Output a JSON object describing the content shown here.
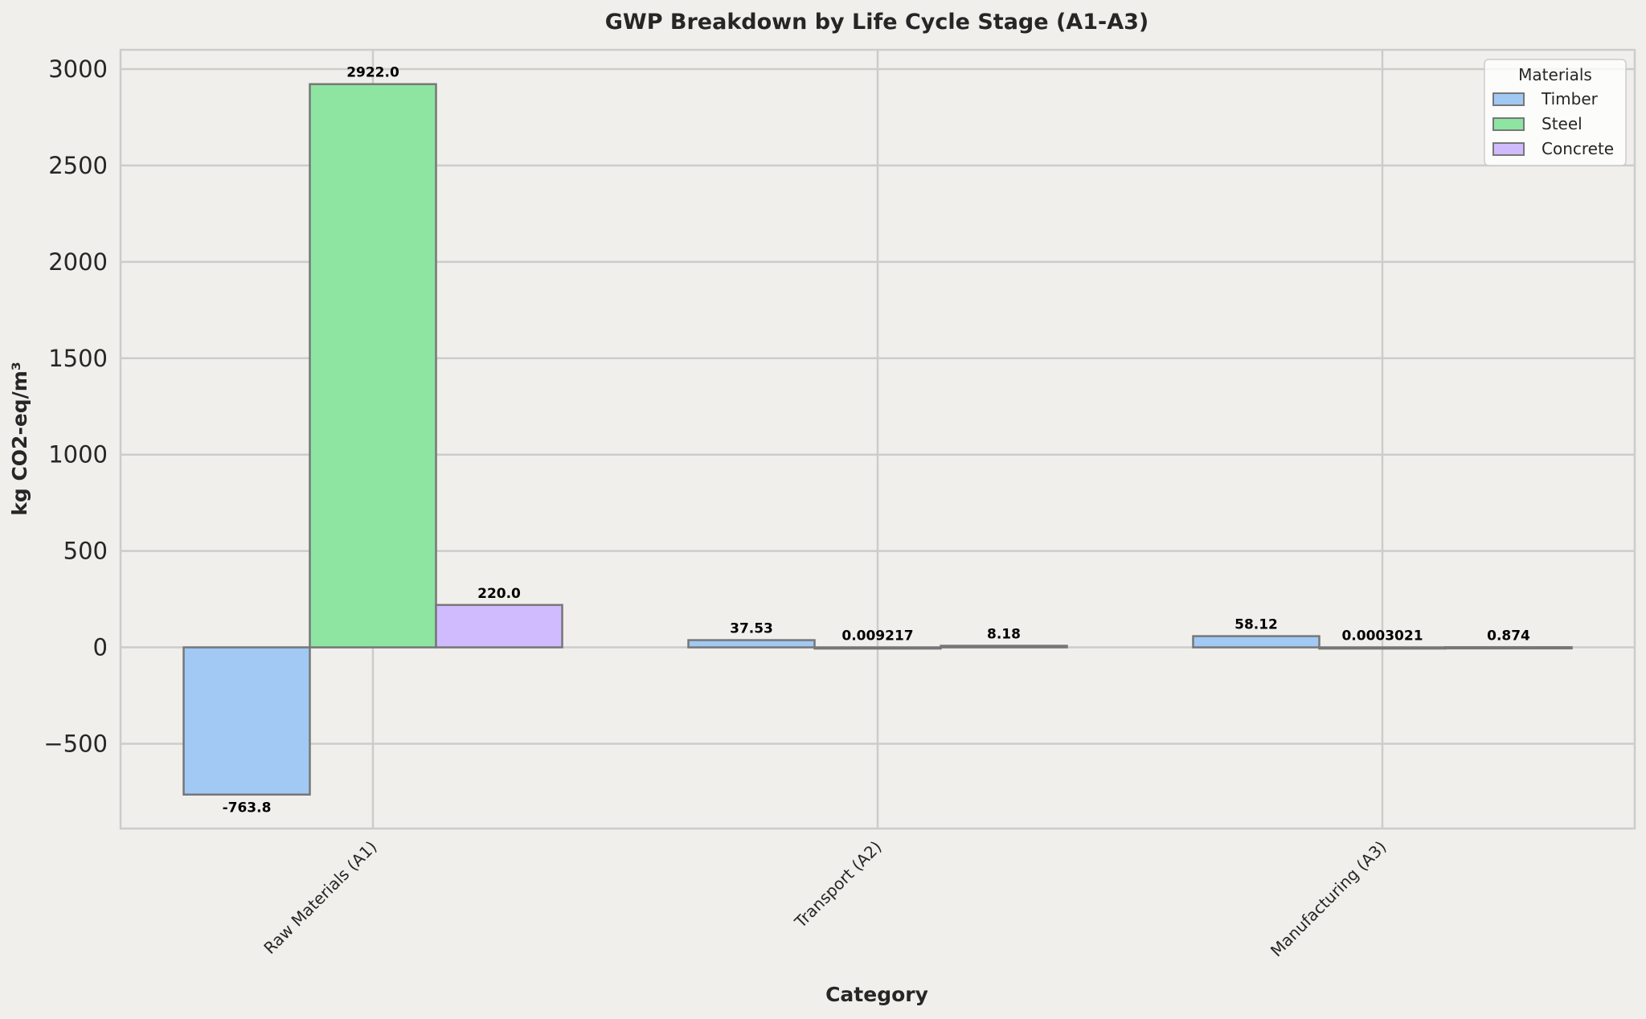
{
  "chart_data": {
    "type": "bar",
    "title": "GWP Breakdown by Life Cycle Stage (A1-A3)",
    "xlabel": "Category",
    "ylabel": "kg CO2-eq/m³",
    "categories": [
      "Raw Materials (A1)",
      "Transport (A2)",
      "Manufacturing (A3)"
    ],
    "series": [
      {
        "name": "Timber",
        "values": [
          -763.8,
          37.53,
          58.12
        ],
        "labels": [
          "-763.8",
          "37.53",
          "58.12"
        ],
        "color": "#a1c9f4"
      },
      {
        "name": "Steel",
        "values": [
          2922.0,
          0.009217,
          0.0003021
        ],
        "labels": [
          "2922.0",
          "0.009217",
          "0.0003021"
        ],
        "color": "#8de5a1"
      },
      {
        "name": "Concrete",
        "values": [
          220.0,
          8.18,
          0.874
        ],
        "labels": [
          "220.0",
          "8.18",
          "0.874"
        ],
        "color": "#d0bbff"
      }
    ],
    "ylim": [
      -940,
      3100
    ],
    "yticks": [
      -500,
      0,
      500,
      1000,
      1500,
      2000,
      2500,
      3000
    ],
    "ytick_labels": [
      "−500",
      "0",
      "500",
      "1000",
      "1500",
      "2000",
      "2500",
      "3000"
    ],
    "legend": {
      "title": "Materials",
      "placement": "top-right"
    },
    "grid": true
  }
}
